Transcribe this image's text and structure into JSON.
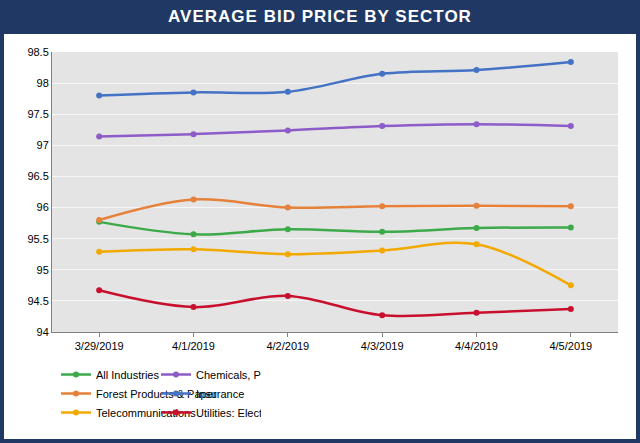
{
  "chart_data": {
    "type": "line",
    "title": "AVERAGE BID PRICE BY SECTOR",
    "categories": [
      "3/29/2019",
      "4/1/2019",
      "4/2/2019",
      "4/3/2019",
      "4/4/2019",
      "4/5/2019"
    ],
    "series": [
      {
        "name": "All Industries",
        "color": "#3DAA4A",
        "values": [
          95.77,
          95.57,
          95.65,
          95.61,
          95.67,
          95.68
        ]
      },
      {
        "name": "Chemicals, Plastics & Rubber",
        "color": "#8E5CC8",
        "values": [
          97.14,
          97.18,
          97.24,
          97.31,
          97.34,
          97.31
        ]
      },
      {
        "name": "Forest Products & Paper",
        "color": "#E5813A",
        "values": [
          95.8,
          96.13,
          96.0,
          96.02,
          96.03,
          96.02
        ]
      },
      {
        "name": "Insurance",
        "color": "#4472C4",
        "values": [
          97.8,
          97.85,
          97.86,
          98.15,
          98.21,
          98.34
        ]
      },
      {
        "name": "Telecommunications",
        "color": "#F2A900",
        "values": [
          95.29,
          95.33,
          95.25,
          95.31,
          95.41,
          94.75
        ]
      },
      {
        "name": "Utilities: Electric",
        "color": "#C8102E",
        "values": [
          94.67,
          94.4,
          94.58,
          94.27,
          94.31,
          94.37
        ]
      }
    ],
    "ylim": [
      94,
      98.5
    ],
    "yticks": [
      94,
      94.5,
      95,
      95.5,
      96,
      96.5,
      97,
      97.5,
      98,
      98.5
    ],
    "grid": true,
    "legend": "bottom",
    "marker": "circle",
    "line_style": "smooth"
  }
}
